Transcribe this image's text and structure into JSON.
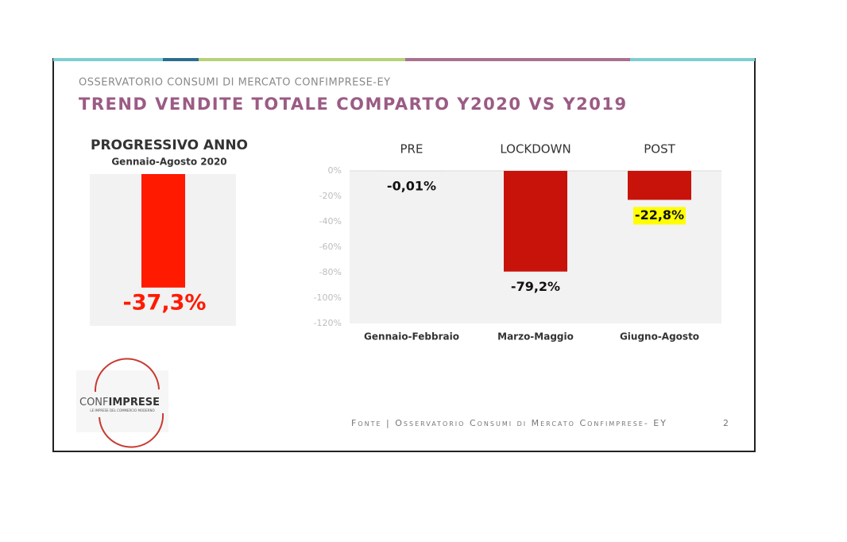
{
  "header": {
    "subtitle": "OSSERVATORIO CONSUMI DI MERCATO CONFIMPRESE-EY",
    "title": "TREND VENDITE TOTALE COMPARTO Y2020 VS Y2019"
  },
  "chart_data": [
    {
      "type": "bar",
      "title": "PROGRESSIVO ANNO",
      "subtitle": "Gennaio-Agosto 2020",
      "values": [
        -37.3
      ],
      "value_labels": [
        "-37,3%"
      ],
      "color": "#ff1a00"
    },
    {
      "type": "bar",
      "headers": [
        "PRE",
        "LOCKDOWN",
        "POST"
      ],
      "categories": [
        "Gennaio-Febbraio",
        "Marzo-Maggio",
        "Giugno-Agosto"
      ],
      "values": [
        -0.01,
        -79.2,
        -22.8
      ],
      "value_labels": [
        "-0,01%",
        "-79,2%",
        "-22,8%"
      ],
      "value_label_backgrounds": [
        null,
        null,
        "#ffff00"
      ],
      "color": "#c8130b",
      "ylim": [
        -120,
        0
      ],
      "yticks": [
        {
          "value": 0,
          "label": "0%"
        },
        {
          "value": -20,
          "label": "-20%"
        },
        {
          "value": -40,
          "label": "-40%"
        },
        {
          "value": -60,
          "label": "-60%"
        },
        {
          "value": -80,
          "label": "-80%"
        },
        {
          "value": -100,
          "label": "-100%"
        },
        {
          "value": -120,
          "label": "-120%"
        }
      ],
      "grid": true
    }
  ],
  "logo": {
    "name_part1": "CONF",
    "name_part2": "IMPRESE",
    "tagline": "LE IMPRESE DEL COMMERCIO MODERNO"
  },
  "footer": {
    "source": "Fonte | Osservatorio Consumi di Mercato Confimprese- EY",
    "page": "2"
  }
}
